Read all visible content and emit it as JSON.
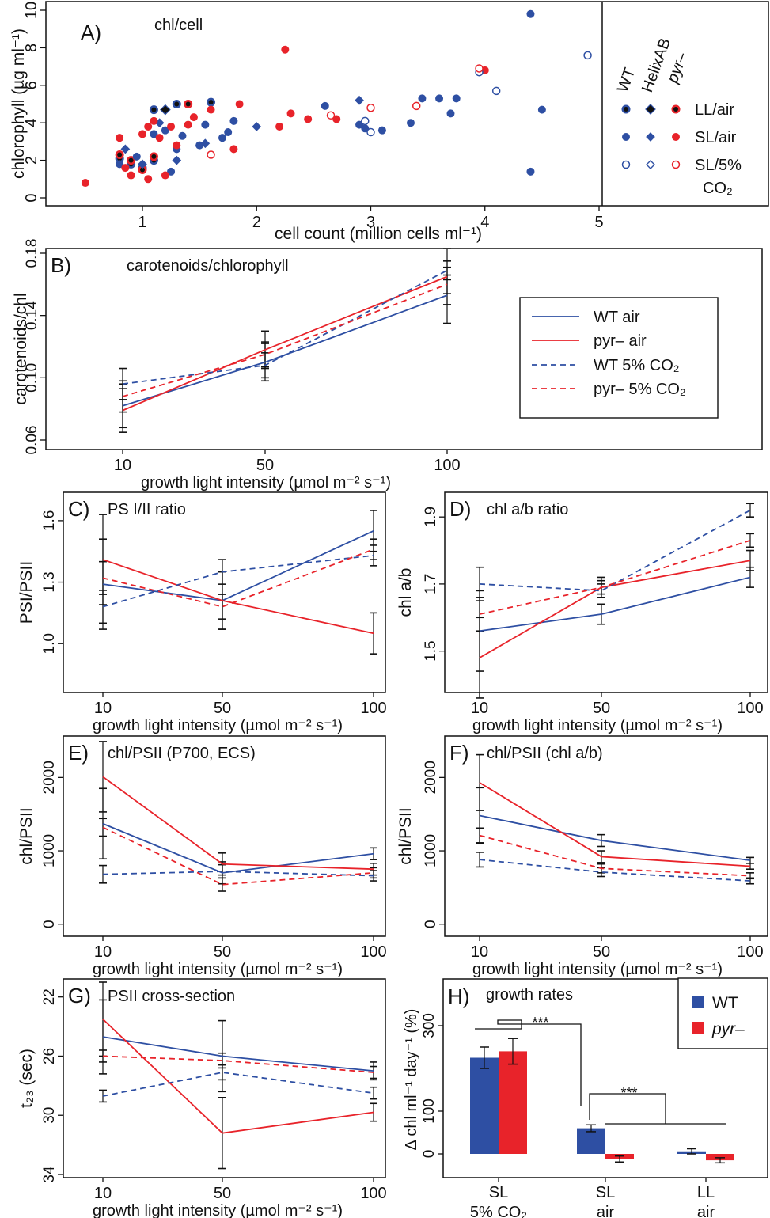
{
  "colors": {
    "wt": "#2e4fa3",
    "pyr": "#e8232a",
    "axis": "#111111"
  },
  "chart_data": [
    {
      "id": "A",
      "panel_label": "A)",
      "title": "chl/cell",
      "type": "scatter",
      "xlabel": "cell count (million cells ml⁻¹)",
      "ylabel": "chlorophyll (µg ml⁻¹)",
      "xlim": [
        0.3,
        5.0
      ],
      "ylim": [
        0,
        10
      ],
      "xticks": [
        "1",
        "2",
        "3",
        "4",
        "5"
      ],
      "yticks": [
        "0",
        "2",
        "4",
        "6",
        "8",
        "10"
      ],
      "legend": {
        "columns": [
          "WT",
          "HelixAB",
          "pyr–"
        ],
        "rows": [
          "LL/air",
          "SL/air",
          "SL/5%",
          "CO₂"
        ]
      },
      "series": [
        {
          "name": "WT LL/air",
          "points": [
            [
              0.8,
              2.1
            ],
            [
              0.9,
              1.8
            ],
            [
              1.0,
              1.6
            ],
            [
              1.1,
              2.0
            ],
            [
              1.1,
              4.7
            ],
            [
              1.3,
              5.0
            ],
            [
              1.6,
              5.1
            ]
          ]
        },
        {
          "name": "HelixAB LL/air",
          "points": [
            [
              1.2,
              4.7
            ]
          ]
        },
        {
          "name": "pyr– LL/air",
          "points": [
            [
              0.8,
              2.3
            ],
            [
              0.9,
              2.0
            ],
            [
              1.0,
              1.5
            ],
            [
              1.1,
              2.2
            ],
            [
              1.4,
              5.0
            ]
          ]
        },
        {
          "name": "WT SL/air",
          "points": [
            [
              0.8,
              1.8
            ],
            [
              0.95,
              2.2
            ],
            [
              1.1,
              3.4
            ],
            [
              1.2,
              3.6
            ],
            [
              1.25,
              1.4
            ],
            [
              1.3,
              2.6
            ],
            [
              1.35,
              3.3
            ],
            [
              1.5,
              2.8
            ],
            [
              1.55,
              3.9
            ],
            [
              1.7,
              3.2
            ],
            [
              1.75,
              3.5
            ],
            [
              1.8,
              4.1
            ],
            [
              2.6,
              4.9
            ],
            [
              2.9,
              3.9
            ],
            [
              2.95,
              3.7
            ],
            [
              3.1,
              3.6
            ],
            [
              3.35,
              4.0
            ],
            [
              3.4,
              4.9
            ],
            [
              3.45,
              5.3
            ],
            [
              3.6,
              5.3
            ],
            [
              3.7,
              4.5
            ],
            [
              3.75,
              5.3
            ],
            [
              4.4,
              9.8
            ],
            [
              4.4,
              1.4
            ],
            [
              4.5,
              4.7
            ]
          ]
        },
        {
          "name": "HelixAB SL/air",
          "points": [
            [
              0.85,
              2.6
            ],
            [
              1.0,
              1.8
            ],
            [
              1.15,
              4.0
            ],
            [
              1.3,
              2.0
            ],
            [
              1.55,
              2.9
            ],
            [
              2.0,
              3.8
            ],
            [
              2.9,
              5.2
            ]
          ]
        },
        {
          "name": "pyr– SL/air",
          "points": [
            [
              0.5,
              0.8
            ],
            [
              0.8,
              3.2
            ],
            [
              0.85,
              1.6
            ],
            [
              0.9,
              1.2
            ],
            [
              1.0,
              3.4
            ],
            [
              1.05,
              3.8
            ],
            [
              1.05,
              1.0
            ],
            [
              1.1,
              4.1
            ],
            [
              1.15,
              3.2
            ],
            [
              1.2,
              1.2
            ],
            [
              1.25,
              3.8
            ],
            [
              1.3,
              2.8
            ],
            [
              1.4,
              3.9
            ],
            [
              1.45,
              4.3
            ],
            [
              1.6,
              4.7
            ],
            [
              1.8,
              2.6
            ],
            [
              1.85,
              5.0
            ],
            [
              2.2,
              3.8
            ],
            [
              2.25,
              7.9
            ],
            [
              2.3,
              4.5
            ],
            [
              2.45,
              4.2
            ],
            [
              2.7,
              4.2
            ],
            [
              4.0,
              6.8
            ]
          ]
        },
        {
          "name": "WT SL/5% CO₂",
          "points": [
            [
              2.95,
              4.1
            ],
            [
              3.0,
              3.5
            ],
            [
              3.95,
              6.7
            ],
            [
              4.1,
              5.7
            ],
            [
              4.9,
              7.6
            ]
          ]
        },
        {
          "name": "HelixAB SL/5% CO₂",
          "points": []
        },
        {
          "name": "pyr– SL/5% CO₂",
          "points": [
            [
              1.6,
              2.3
            ],
            [
              2.65,
              4.4
            ],
            [
              3.0,
              4.8
            ],
            [
              3.4,
              4.9
            ],
            [
              3.95,
              6.9
            ]
          ]
        }
      ]
    },
    {
      "id": "B",
      "panel_label": "B)",
      "title": "carotenoids/chlorophyll",
      "type": "line",
      "xlabel": "growth light intensity (µmol m⁻² s⁻¹)",
      "ylabel": "carotenoids/chl",
      "x": [
        "10",
        "50",
        "100"
      ],
      "ylim": [
        0.06,
        0.18
      ],
      "yticks": [
        "0.06",
        "0.10",
        "0.14",
        "0.18"
      ],
      "legend": [
        "WT air",
        "pyr– air",
        "WT 5% CO₂",
        "pyr– 5% CO₂"
      ],
      "series": [
        {
          "name": "WT air",
          "values": [
            0.082,
            0.11,
            0.153
          ]
        },
        {
          "name": "pyr– air",
          "values": [
            0.079,
            0.118,
            0.165
          ]
        },
        {
          "name": "WT 5% CO₂",
          "values": [
            0.096,
            0.108,
            0.169
          ]
        },
        {
          "name": "pyr– 5% CO₂",
          "values": [
            0.088,
            0.115,
            0.16
          ]
        }
      ],
      "errors": [
        [
          0.014,
          0.012,
          0.018
        ],
        [
          0.01,
          0.008,
          0.006
        ]
      ]
    },
    {
      "id": "C",
      "panel_label": "C)",
      "title": "PS I/II ratio",
      "type": "line",
      "xlabel": "growth light intensity (µmol m⁻² s⁻¹)",
      "ylabel": "PSI/PSII",
      "x": [
        "10",
        "50",
        "100"
      ],
      "ylim": [
        0.8,
        1.7
      ],
      "yticks": [
        "1.0",
        "1.3",
        "1.6"
      ],
      "series": [
        {
          "name": "WT air",
          "values": [
            1.29,
            1.21,
            1.55
          ]
        },
        {
          "name": "pyr– air",
          "values": [
            1.41,
            1.21,
            1.05
          ]
        },
        {
          "name": "WT 5% CO₂",
          "values": [
            1.18,
            1.35,
            1.43
          ]
        },
        {
          "name": "pyr– 5% CO₂",
          "values": [
            1.32,
            1.18,
            1.46
          ]
        }
      ],
      "errors": [
        [
          0.22,
          0.14,
          0.1
        ],
        [
          0.08,
          0.06,
          0.05
        ]
      ]
    },
    {
      "id": "D",
      "panel_label": "D)",
      "title": "chl a/b ratio",
      "type": "line",
      "xlabel": "growth light intensity (µmol m⁻² s⁻¹)",
      "ylabel": "chl a/b",
      "x": [
        "10",
        "50",
        "100"
      ],
      "ylim": [
        1.4,
        1.95
      ],
      "yticks": [
        "1.5",
        "1.7",
        "1.9"
      ],
      "series": [
        {
          "name": "WT air",
          "values": [
            1.56,
            1.61,
            1.72
          ]
        },
        {
          "name": "pyr– air",
          "values": [
            1.48,
            1.69,
            1.77
          ]
        },
        {
          "name": "WT 5% CO₂",
          "values": [
            1.7,
            1.68,
            1.92
          ]
        },
        {
          "name": "pyr– 5% CO₂",
          "values": [
            1.61,
            1.69,
            1.83
          ]
        }
      ],
      "errors": [
        [
          0.12,
          0.03,
          0.03
        ],
        [
          0.05,
          0.02,
          0.02
        ]
      ]
    },
    {
      "id": "E",
      "panel_label": "E)",
      "title": "chl/PSII (P700, ECS)",
      "type": "line",
      "xlabel": "growth light intensity (µmol m⁻² s⁻¹)",
      "ylabel": "chl/PSII",
      "x": [
        "10",
        "50",
        "100"
      ],
      "ylim": [
        -100,
        2500
      ],
      "yticks": [
        "0",
        "1000",
        "2000"
      ],
      "series": [
        {
          "name": "WT air",
          "values": [
            1370,
            700,
            960
          ]
        },
        {
          "name": "pyr– air",
          "values": [
            2010,
            820,
            750
          ]
        },
        {
          "name": "WT 5% CO₂",
          "values": [
            680,
            720,
            660
          ]
        },
        {
          "name": "pyr– 5% CO₂",
          "values": [
            1320,
            540,
            700
          ]
        }
      ],
      "errors": [
        [
          480,
          150,
          80
        ],
        [
          120,
          90,
          70
        ]
      ]
    },
    {
      "id": "F",
      "panel_label": "F)",
      "title": "chl/PSII (chl a/b)",
      "type": "line",
      "xlabel": "growth light intensity (µmol m⁻² s⁻¹)",
      "ylabel": "chl/PSII",
      "x": [
        "10",
        "50",
        "100"
      ],
      "ylim": [
        -100,
        2500
      ],
      "yticks": [
        "0",
        "1000",
        "2000"
      ],
      "series": [
        {
          "name": "WT air",
          "values": [
            1480,
            1140,
            870
          ]
        },
        {
          "name": "pyr– air",
          "values": [
            1930,
            920,
            790
          ]
        },
        {
          "name": "WT 5% CO₂",
          "values": [
            880,
            710,
            590
          ]
        },
        {
          "name": "pyr– 5% CO₂",
          "values": [
            1210,
            760,
            660
          ]
        }
      ],
      "errors": [
        [
          380,
          80,
          40
        ],
        [
          100,
          60,
          40
        ]
      ]
    },
    {
      "id": "G",
      "panel_label": "G)",
      "title": "PSII cross-section",
      "type": "line",
      "xlabel": "growth light intensity (µmol m⁻² s⁻¹)",
      "ylabel": "t₂₃ (sec)",
      "x": [
        "10",
        "50",
        "100"
      ],
      "ylim": [
        34,
        21
      ],
      "yticks": [
        "22",
        "26",
        "30",
        "34"
      ],
      "series": [
        {
          "name": "WT air",
          "values": [
            24.7,
            26.0,
            27.0
          ]
        },
        {
          "name": "pyr– air",
          "values": [
            23.5,
            31.2,
            29.8
          ]
        },
        {
          "name": "WT 5% CO₂",
          "values": [
            28.7,
            27.1,
            28.5
          ]
        },
        {
          "name": "pyr– 5% CO₂",
          "values": [
            26.0,
            26.3,
            27.1
          ]
        }
      ],
      "errors": [
        [
          2.5,
          2.4,
          0.6
        ],
        [
          0.4,
          0.5,
          0.4
        ]
      ]
    },
    {
      "id": "H",
      "panel_label": "H)",
      "title": "growth rates",
      "type": "bar",
      "ylabel": "Δ chl ml⁻¹ day⁻¹ (%)",
      "categories": [
        "SL\n5% CO₂",
        "SL\nair",
        "LL\nair"
      ],
      "ylim": [
        -40,
        380
      ],
      "yticks": [
        "0",
        "100",
        "300"
      ],
      "legend": [
        "WT",
        "pyr–"
      ],
      "significance": [
        "***",
        "***"
      ],
      "series": [
        {
          "name": "WT",
          "values": [
            225,
            60,
            6
          ],
          "errors": [
            25,
            8,
            6
          ]
        },
        {
          "name": "pyr–",
          "values": [
            240,
            -12,
            -15
          ],
          "errors": [
            30,
            7,
            6
          ]
        }
      ]
    }
  ]
}
